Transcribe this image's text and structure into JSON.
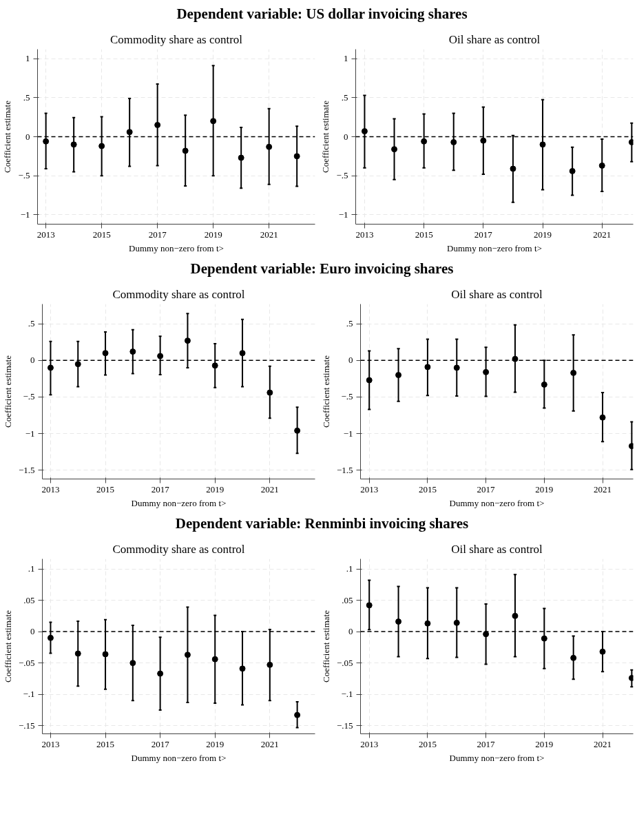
{
  "chart_data": [
    {
      "type": "scatter",
      "title": "Commodity share as control",
      "annotations": [
        "Dependent variable: US dollar invoicing shares"
      ],
      "xlabel": "Dummy non−zero from t>",
      "ylabel": "Coefficient estimate",
      "x": [
        2013,
        2014,
        2015,
        2016,
        2017,
        2018,
        2019,
        2020,
        2021,
        2022
      ],
      "series": [
        {
          "color": "#000000",
          "values": [
            -0.06,
            -0.1,
            -0.12,
            0.06,
            0.15,
            -0.18,
            0.2,
            -0.27,
            -0.13,
            -0.25
          ],
          "errors": [
            [
              -0.41,
              0.3
            ],
            [
              -0.45,
              0.245
            ],
            [
              -0.5,
              0.255
            ],
            [
              -0.38,
              0.49
            ],
            [
              -0.37,
              0.675
            ],
            [
              -0.63,
              0.275
            ],
            [
              -0.5,
              0.91
            ],
            [
              -0.66,
              0.12
            ],
            [
              -0.61,
              0.36
            ],
            [
              -0.635,
              0.135
            ]
          ]
        }
      ],
      "xlim": [
        2012.7,
        2022.65
      ],
      "xticks": [
        2013,
        2015,
        2017,
        2019,
        2021
      ],
      "ylim": [
        -1.12,
        1.12
      ],
      "yticks": [
        {
          "value": -1,
          "label": "−1"
        },
        {
          "value": -0.5,
          "label": "−.5"
        },
        {
          "value": 0,
          "label": "0"
        },
        {
          "value": 0.5,
          "label": ".5"
        },
        1
      ],
      "grid": true,
      "marker": "circle",
      "ref_lines": [
        {
          "axis": "y",
          "value": 0,
          "color": "#000000",
          "line_style": "dashed"
        }
      ]
    },
    {
      "type": "scatter",
      "title": "Oil share as control",
      "xlabel": "Dummy non−zero from t>",
      "ylabel": "Coefficient estimate",
      "x": [
        2013,
        2014,
        2015,
        2016,
        2017,
        2018,
        2019,
        2020,
        2021,
        2022
      ],
      "series": [
        {
          "color": "#000000",
          "values": [
            0.07,
            -0.16,
            -0.06,
            -0.07,
            -0.05,
            -0.41,
            -0.1,
            -0.44,
            -0.37,
            -0.07
          ],
          "errors": [
            [
              -0.4,
              0.53
            ],
            [
              -0.55,
              0.23
            ],
            [
              -0.4,
              0.29
            ],
            [
              -0.43,
              0.3
            ],
            [
              -0.48,
              0.38
            ],
            [
              -0.84,
              0.015
            ],
            [
              -0.68,
              0.475
            ],
            [
              -0.75,
              -0.135
            ],
            [
              -0.7,
              -0.03
            ],
            [
              -0.32,
              0.175
            ]
          ]
        }
      ],
      "xlim": [
        2012.7,
        2022.05
      ],
      "xticks": [
        2013,
        2015,
        2017,
        2019,
        2021
      ],
      "ylim": [
        -1.12,
        1.12
      ],
      "yticks": [
        {
          "value": -1,
          "label": "−1"
        },
        {
          "value": -0.5,
          "label": "−.5"
        },
        {
          "value": 0,
          "label": "0"
        },
        {
          "value": 0.5,
          "label": ".5"
        },
        1
      ],
      "grid": true,
      "marker": "circle",
      "ref_lines": [
        {
          "axis": "y",
          "value": 0,
          "color": "#000000",
          "line_style": "dashed"
        }
      ]
    },
    {
      "type": "scatter",
      "title": "Commodity share as control",
      "annotations": [
        "Dependent variable: Euro invoicing shares"
      ],
      "xlabel": "Dummy non−zero from t>",
      "ylabel": "Coefficient estimate",
      "x": [
        2013,
        2014,
        2015,
        2016,
        2017,
        2018,
        2019,
        2020,
        2021,
        2022
      ],
      "series": [
        {
          "color": "#000000",
          "values": [
            -0.1,
            -0.05,
            0.1,
            0.12,
            0.06,
            0.27,
            -0.07,
            0.1,
            -0.44,
            -0.96
          ],
          "errors": [
            [
              -0.47,
              0.26
            ],
            [
              -0.36,
              0.26
            ],
            [
              -0.2,
              0.39
            ],
            [
              -0.18,
              0.42
            ],
            [
              -0.195,
              0.33
            ],
            [
              -0.1,
              0.64
            ],
            [
              -0.37,
              0.23
            ],
            [
              -0.36,
              0.56
            ],
            [
              -0.79,
              -0.08
            ],
            [
              -1.27,
              -0.64
            ]
          ]
        }
      ],
      "xlim": [
        2012.7,
        2022.65
      ],
      "xticks": [
        2013,
        2015,
        2017,
        2019,
        2021
      ],
      "ylim": [
        -1.62,
        0.77
      ],
      "yticks": [
        {
          "value": -1.5,
          "label": "−1.5"
        },
        {
          "value": -1,
          "label": "−1"
        },
        {
          "value": -0.5,
          "label": "−.5"
        },
        {
          "value": 0,
          "label": "0"
        },
        {
          "value": 0.5,
          "label": ".5"
        }
      ],
      "grid": true,
      "marker": "circle",
      "ref_lines": [
        {
          "axis": "y",
          "value": 0,
          "color": "#000000",
          "line_style": "dashed"
        }
      ]
    },
    {
      "type": "scatter",
      "title": "Oil share as control",
      "xlabel": "Dummy non−zero from t>",
      "ylabel": "Coefficient estimate",
      "x": [
        2013,
        2014,
        2015,
        2016,
        2017,
        2018,
        2019,
        2020,
        2021,
        2022
      ],
      "series": [
        {
          "color": "#000000",
          "values": [
            -0.27,
            -0.2,
            -0.09,
            -0.1,
            -0.16,
            0.02,
            -0.33,
            -0.17,
            -0.78,
            -1.17
          ],
          "errors": [
            [
              -0.67,
              0.13
            ],
            [
              -0.56,
              0.16
            ],
            [
              -0.48,
              0.29
            ],
            [
              -0.485,
              0.29
            ],
            [
              -0.49,
              0.18
            ],
            [
              -0.435,
              0.485
            ],
            [
              -0.65,
              0.0
            ],
            [
              -0.69,
              0.35
            ],
            [
              -1.11,
              -0.44
            ],
            [
              -1.49,
              -0.84
            ]
          ]
        }
      ],
      "xlim": [
        2012.7,
        2022.05
      ],
      "xticks": [
        2013,
        2015,
        2017,
        2019,
        2021
      ],
      "ylim": [
        -1.62,
        0.77
      ],
      "yticks": [
        {
          "value": -1.5,
          "label": "−1.5"
        },
        {
          "value": -1,
          "label": "−1"
        },
        {
          "value": -0.5,
          "label": "−.5"
        },
        {
          "value": 0,
          "label": "0"
        },
        {
          "value": 0.5,
          "label": ".5"
        }
      ],
      "grid": true,
      "marker": "circle",
      "ref_lines": [
        {
          "axis": "y",
          "value": 0,
          "color": "#000000",
          "line_style": "dashed"
        }
      ]
    },
    {
      "type": "scatter",
      "title": "Commodity share as control",
      "annotations": [
        "Dependent variable: Renminbi invoicing shares"
      ],
      "xlabel": "Dummy non−zero from t>",
      "ylabel": "Coefficient estimate",
      "x": [
        2013,
        2014,
        2015,
        2016,
        2017,
        2018,
        2019,
        2020,
        2021,
        2022
      ],
      "series": [
        {
          "color": "#000000",
          "values": [
            -0.01,
            -0.035,
            -0.036,
            -0.05,
            -0.067,
            -0.037,
            -0.044,
            -0.059,
            -0.053,
            -0.133
          ],
          "errors": [
            [
              -0.0345,
              0.015
            ],
            [
              -0.087,
              0.0166
            ],
            [
              -0.092,
              0.019
            ],
            [
              -0.11,
              0.01
            ],
            [
              -0.125,
              -0.009
            ],
            [
              -0.113,
              0.039
            ],
            [
              -0.114,
              0.026
            ],
            [
              -0.117,
              0.0
            ],
            [
              -0.11,
              0.0035
            ],
            [
              -0.153,
              -0.112
            ]
          ]
        }
      ],
      "xlim": [
        2012.7,
        2022.65
      ],
      "xticks": [
        2013,
        2015,
        2017,
        2019,
        2021
      ],
      "ylim": [
        -0.163,
        0.116
      ],
      "yticks": [
        {
          "value": -0.15,
          "label": "−.15"
        },
        {
          "value": -0.1,
          "label": "−.1"
        },
        {
          "value": -0.05,
          "label": "−.05"
        },
        {
          "value": 0,
          "label": "0"
        },
        {
          "value": 0.05,
          "label": ".05"
        },
        {
          "value": 0.1,
          "label": ".1"
        }
      ],
      "grid": true,
      "marker": "circle",
      "ref_lines": [
        {
          "axis": "y",
          "value": 0,
          "color": "#000000",
          "line_style": "dashed"
        }
      ]
    },
    {
      "type": "scatter",
      "title": "Oil share as control",
      "xlabel": "Dummy non−zero from t>",
      "ylabel": "Coefficient estimate",
      "x": [
        2013,
        2014,
        2015,
        2016,
        2017,
        2018,
        2019,
        2020,
        2021,
        2022
      ],
      "series": [
        {
          "color": "#000000",
          "values": [
            0.042,
            0.016,
            0.013,
            0.014,
            -0.004,
            0.025,
            -0.011,
            -0.042,
            -0.032,
            -0.074
          ],
          "errors": [
            [
              0.003,
              0.082
            ],
            [
              -0.04,
              0.072
            ],
            [
              -0.043,
              0.07
            ],
            [
              -0.041,
              0.07
            ],
            [
              -0.052,
              0.044
            ],
            [
              -0.04,
              0.091
            ],
            [
              -0.059,
              0.037
            ],
            [
              -0.076,
              -0.007
            ],
            [
              -0.064,
              0.0
            ],
            [
              -0.088,
              -0.061
            ]
          ]
        }
      ],
      "xlim": [
        2012.7,
        2022.05
      ],
      "xticks": [
        2013,
        2015,
        2017,
        2019,
        2021
      ],
      "ylim": [
        -0.163,
        0.116
      ],
      "yticks": [
        {
          "value": -0.15,
          "label": "−.15"
        },
        {
          "value": -0.1,
          "label": "−.1"
        },
        {
          "value": -0.05,
          "label": "−.05"
        },
        {
          "value": 0,
          "label": "0"
        },
        {
          "value": 0.05,
          "label": ".05"
        },
        {
          "value": 0.1,
          "label": ".1"
        }
      ],
      "grid": true,
      "marker": "circle",
      "ref_lines": [
        {
          "axis": "y",
          "value": 0,
          "color": "#000000",
          "line_style": "dashed"
        }
      ]
    }
  ]
}
